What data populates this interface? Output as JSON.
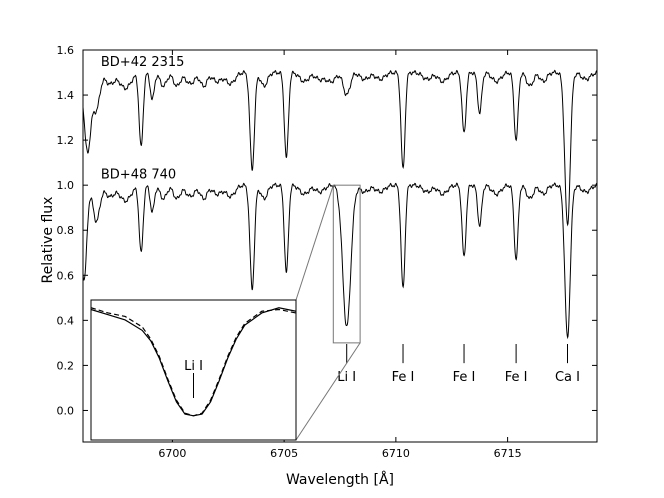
{
  "chart_data": {
    "type": "line",
    "xlabel": "Wavelength [Å]",
    "ylabel": "Relative flux",
    "xlim": [
      6696,
      6719
    ],
    "ylim": [
      -0.14,
      1.6
    ],
    "x_ticks": [
      6700,
      6705,
      6710,
      6715
    ],
    "y_ticks": [
      0.0,
      0.2,
      0.4,
      0.6,
      0.8,
      1.0,
      1.2,
      1.4,
      1.6
    ],
    "x_tick_labels": [
      "6700",
      "6705",
      "6710",
      "6715"
    ],
    "y_tick_labels": [
      "0.0",
      "0.2",
      "0.4",
      "0.6",
      "0.8",
      "1.0",
      "1.2",
      "1.4",
      "1.6"
    ],
    "series": [
      {
        "name": "BD+42 2315",
        "offset": 0.5,
        "continuum": 1.0,
        "lines": [
          {
            "x": 6696.2,
            "depth": 0.35,
            "width": 0.15
          },
          {
            "x": 6696.6,
            "depth": 0.16,
            "width": 0.15
          },
          {
            "x": 6697.2,
            "depth": 0.05,
            "width": 0.2
          },
          {
            "x": 6697.9,
            "depth": 0.07,
            "width": 0.25
          },
          {
            "x": 6698.6,
            "depth": 0.33,
            "width": 0.09
          },
          {
            "x": 6699.1,
            "depth": 0.12,
            "width": 0.09
          },
          {
            "x": 6699.6,
            "depth": 0.06,
            "width": 0.15
          },
          {
            "x": 6700.2,
            "depth": 0.06,
            "width": 0.15
          },
          {
            "x": 6700.8,
            "depth": 0.05,
            "width": 0.2
          },
          {
            "x": 6701.4,
            "depth": 0.06,
            "width": 0.15
          },
          {
            "x": 6702.0,
            "depth": 0.04,
            "width": 0.2
          },
          {
            "x": 6702.6,
            "depth": 0.05,
            "width": 0.2
          },
          {
            "x": 6703.57,
            "depth": 0.43,
            "width": 0.1
          },
          {
            "x": 6704.1,
            "depth": 0.06,
            "width": 0.15
          },
          {
            "x": 6705.1,
            "depth": 0.38,
            "width": 0.09
          },
          {
            "x": 6705.9,
            "depth": 0.04,
            "width": 0.2
          },
          {
            "x": 6706.6,
            "depth": 0.03,
            "width": 0.2
          },
          {
            "x": 6707.1,
            "depth": 0.04,
            "width": 0.2
          },
          {
            "x": 6707.8,
            "depth": 0.1,
            "width": 0.15
          },
          {
            "x": 6708.6,
            "depth": 0.03,
            "width": 0.2
          },
          {
            "x": 6709.3,
            "depth": 0.03,
            "width": 0.2
          },
          {
            "x": 6710.32,
            "depth": 0.43,
            "width": 0.09
          },
          {
            "x": 6711.4,
            "depth": 0.03,
            "width": 0.2
          },
          {
            "x": 6712.1,
            "depth": 0.04,
            "width": 0.2
          },
          {
            "x": 6713.05,
            "depth": 0.27,
            "width": 0.09
          },
          {
            "x": 6713.75,
            "depth": 0.18,
            "width": 0.09
          },
          {
            "x": 6714.5,
            "depth": 0.04,
            "width": 0.2
          },
          {
            "x": 6715.38,
            "depth": 0.3,
            "width": 0.09
          },
          {
            "x": 6716.0,
            "depth": 0.06,
            "width": 0.15
          },
          {
            "x": 6716.6,
            "depth": 0.04,
            "width": 0.15
          },
          {
            "x": 6717.68,
            "depth": 0.68,
            "width": 0.12
          },
          {
            "x": 6718.5,
            "depth": 0.03,
            "width": 0.2
          }
        ]
      },
      {
        "name": "BD+48 740",
        "offset": 0.0,
        "continuum": 1.0,
        "lines": [
          {
            "x": 6696.05,
            "depth": 0.42,
            "width": 0.12
          },
          {
            "x": 6696.6,
            "depth": 0.16,
            "width": 0.15
          },
          {
            "x": 6697.2,
            "depth": 0.05,
            "width": 0.2
          },
          {
            "x": 6697.9,
            "depth": 0.07,
            "width": 0.25
          },
          {
            "x": 6698.6,
            "depth": 0.3,
            "width": 0.09
          },
          {
            "x": 6699.1,
            "depth": 0.12,
            "width": 0.09
          },
          {
            "x": 6699.6,
            "depth": 0.06,
            "width": 0.15
          },
          {
            "x": 6700.2,
            "depth": 0.06,
            "width": 0.15
          },
          {
            "x": 6700.8,
            "depth": 0.05,
            "width": 0.2
          },
          {
            "x": 6701.4,
            "depth": 0.06,
            "width": 0.15
          },
          {
            "x": 6702.0,
            "depth": 0.04,
            "width": 0.2
          },
          {
            "x": 6702.6,
            "depth": 0.05,
            "width": 0.2
          },
          {
            "x": 6703.57,
            "depth": 0.46,
            "width": 0.1
          },
          {
            "x": 6704.1,
            "depth": 0.06,
            "width": 0.15
          },
          {
            "x": 6705.1,
            "depth": 0.39,
            "width": 0.09
          },
          {
            "x": 6705.9,
            "depth": 0.04,
            "width": 0.2
          },
          {
            "x": 6706.6,
            "depth": 0.03,
            "width": 0.2
          },
          {
            "x": 6707.8,
            "depth": 0.63,
            "width": 0.18
          },
          {
            "x": 6708.6,
            "depth": 0.03,
            "width": 0.2
          },
          {
            "x": 6709.3,
            "depth": 0.03,
            "width": 0.2
          },
          {
            "x": 6710.32,
            "depth": 0.46,
            "width": 0.09
          },
          {
            "x": 6711.4,
            "depth": 0.03,
            "width": 0.2
          },
          {
            "x": 6712.1,
            "depth": 0.04,
            "width": 0.2
          },
          {
            "x": 6713.05,
            "depth": 0.32,
            "width": 0.09
          },
          {
            "x": 6713.75,
            "depth": 0.18,
            "width": 0.09
          },
          {
            "x": 6714.5,
            "depth": 0.04,
            "width": 0.2
          },
          {
            "x": 6715.38,
            "depth": 0.33,
            "width": 0.09
          },
          {
            "x": 6716.0,
            "depth": 0.06,
            "width": 0.15
          },
          {
            "x": 6716.6,
            "depth": 0.04,
            "width": 0.15
          },
          {
            "x": 6717.68,
            "depth": 0.68,
            "width": 0.12
          },
          {
            "x": 6718.5,
            "depth": 0.03,
            "width": 0.2
          }
        ]
      }
    ],
    "series_labels": [
      {
        "text": "BD+42 2315",
        "x": 6696.8,
        "y": 1.53
      },
      {
        "text": "BD+48 740",
        "x": 6696.8,
        "y": 1.03
      }
    ],
    "line_markers": [
      {
        "label": "Li I",
        "x": 6707.8,
        "y_top": 0.295,
        "y_bottom": 0.21
      },
      {
        "label": "Fe I",
        "x": 6710.32,
        "y_top": 0.295,
        "y_bottom": 0.21
      },
      {
        "label": "Fe I",
        "x": 6713.05,
        "y_top": 0.295,
        "y_bottom": 0.21
      },
      {
        "label": "Fe I",
        "x": 6715.38,
        "y_top": 0.295,
        "y_bottom": 0.21
      },
      {
        "label": "Ca I",
        "x": 6717.68,
        "y_top": 0.295,
        "y_bottom": 0.21
      }
    ],
    "zoom_box": {
      "xlim": [
        6707.2,
        6708.4
      ],
      "ylim": [
        0.3,
        1.0
      ]
    },
    "inset": {
      "marker_label": "Li I",
      "marker_x": 6707.8,
      "curves": [
        {
          "style": "solid",
          "x": [
            6707.2,
            6707.3,
            6707.4,
            6707.5,
            6707.55,
            6707.6,
            6707.65,
            6707.7,
            6707.75,
            6707.8,
            6707.85,
            6707.9,
            6707.95,
            6708.0,
            6708.05,
            6708.1,
            6708.2,
            6708.3,
            6708.4
          ],
          "y": [
            0.98,
            0.95,
            0.92,
            0.86,
            0.8,
            0.7,
            0.57,
            0.45,
            0.38,
            0.37,
            0.38,
            0.45,
            0.57,
            0.7,
            0.81,
            0.89,
            0.96,
            0.99,
            0.97
          ]
        },
        {
          "style": "dashed",
          "x": [
            6707.2,
            6707.3,
            6707.4,
            6707.5,
            6707.55,
            6707.6,
            6707.65,
            6707.7,
            6707.75,
            6707.8,
            6707.85,
            6707.9,
            6707.95,
            6708.0,
            6708.05,
            6708.1,
            6708.2,
            6708.3,
            6708.4
          ],
          "y": [
            0.99,
            0.96,
            0.94,
            0.88,
            0.81,
            0.71,
            0.58,
            0.46,
            0.385,
            0.37,
            0.385,
            0.46,
            0.58,
            0.71,
            0.82,
            0.9,
            0.97,
            0.98,
            0.96
          ]
        }
      ]
    }
  }
}
